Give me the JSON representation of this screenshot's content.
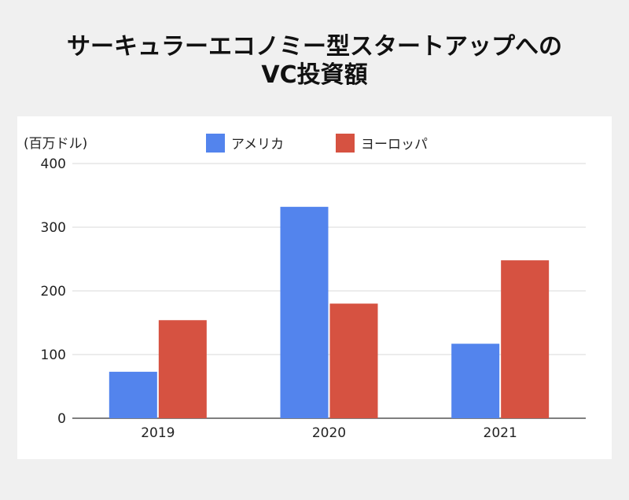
{
  "title_line1": "サーキュラーエコノミー型スタートアップへの",
  "title_line2": "VC投資額",
  "chart_data": {
    "type": "bar",
    "unit_label": "(百万ドル)",
    "categories": [
      "2019",
      "2020",
      "2021"
    ],
    "series": [
      {
        "name": "アメリカ",
        "color": "#5384ed",
        "values": [
          73,
          332,
          117
        ]
      },
      {
        "name": "ヨーロッパ",
        "color": "#d65241",
        "values": [
          154,
          180,
          248
        ]
      }
    ],
    "ylim": [
      0,
      400
    ],
    "yticks": [
      0,
      100,
      200,
      300,
      400
    ],
    "grid": true,
    "legend_position": "top-center"
  }
}
